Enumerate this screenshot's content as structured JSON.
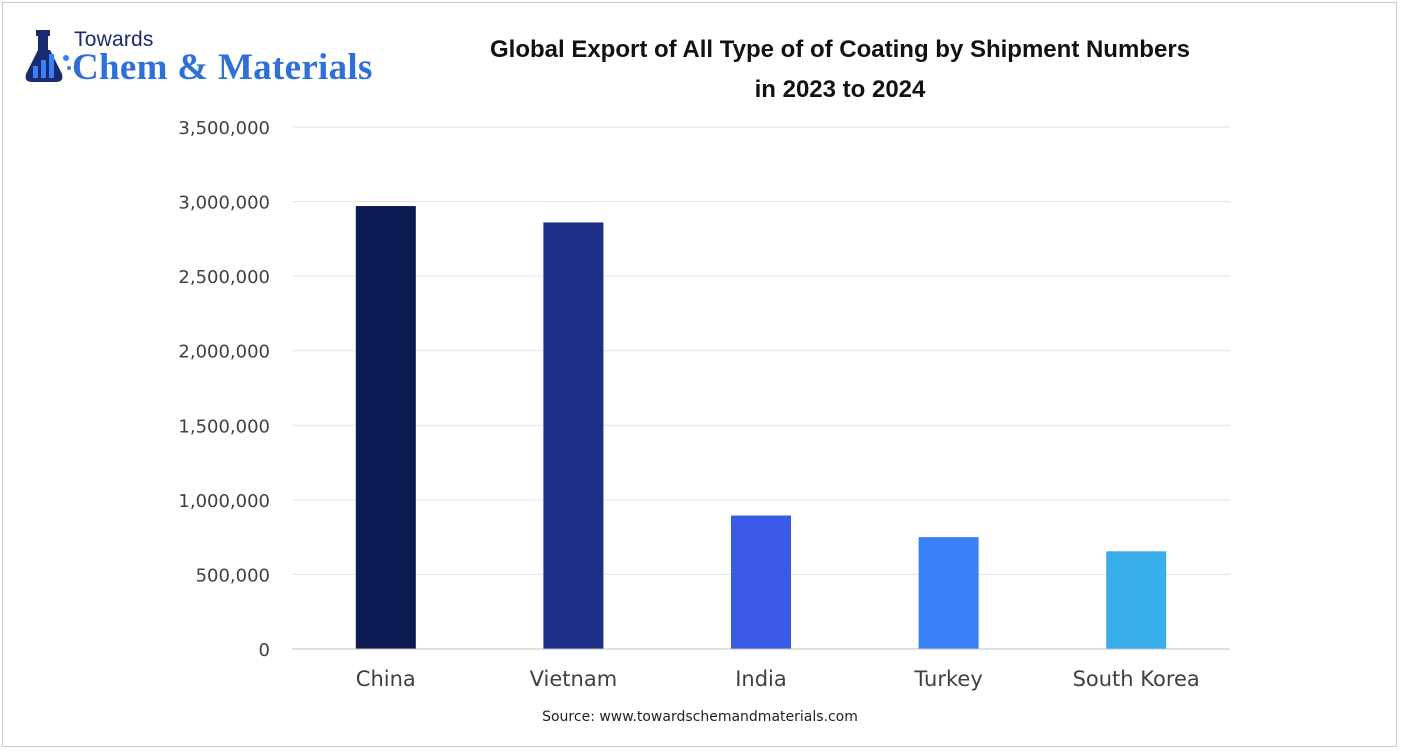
{
  "logo": {
    "line1": "Towards",
    "line2": "Chem & Materials",
    "icon": "flask-chart-icon"
  },
  "source": "Source: www.towardschemandmaterials.com",
  "chart_data": {
    "type": "bar",
    "title": "Global Export of All Type of of Coating by Shipment Numbers in 2023 to 2024",
    "title_lines": [
      "Global Export of All Type of of Coating by Shipment Numbers",
      "in 2023 to 2024"
    ],
    "categories": [
      "China",
      "Vietnam",
      "India",
      "Turkey",
      "South Korea"
    ],
    "values": [
      2970000,
      2860000,
      895000,
      750000,
      655000
    ],
    "colors": [
      "#0e1a52",
      "#1c2f86",
      "#3a5ae6",
      "#3a80f7",
      "#3aaeea"
    ],
    "ylim": [
      0,
      3500000
    ],
    "yticks": [
      0,
      500000,
      1000000,
      1500000,
      2000000,
      2500000,
      3000000,
      3500000
    ],
    "ytick_labels": [
      "0",
      "500,000",
      "1,000,000",
      "1,500,000",
      "2,000,000",
      "2,500,000",
      "3,000,000",
      "3,500,000"
    ],
    "xlabel": "",
    "ylabel": "",
    "grid": true,
    "legend": "none"
  }
}
